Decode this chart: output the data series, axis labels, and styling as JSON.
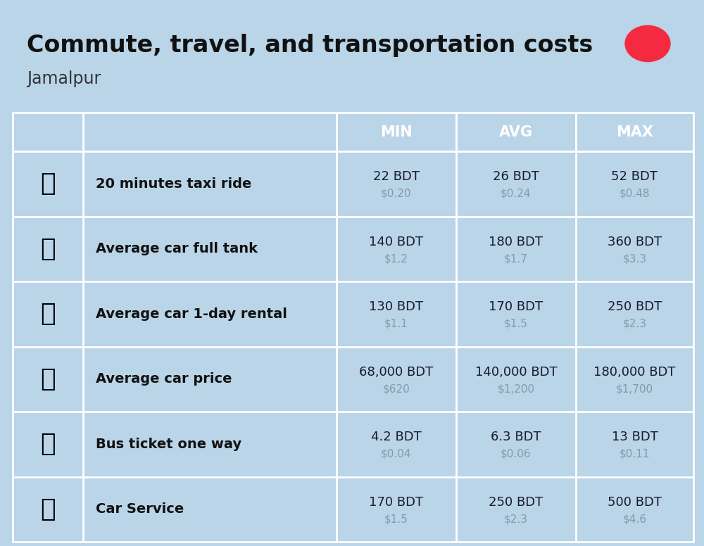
{
  "title": "Commute, travel, and transportation costs",
  "subtitle": "Jamalpur",
  "bg_color": "#bad4e8",
  "header_bg": "#5a94c8",
  "header_text_color": "#ffffff",
  "row_bg_odd": "#c8dff0",
  "row_bg_even": "#bad4e8",
  "icon_col_bg_odd": "#b0cfe4",
  "icon_col_bg_even": "#aacae0",
  "col_headers": [
    "MIN",
    "AVG",
    "MAX"
  ],
  "rows": [
    {
      "label": "20 minutes taxi ride",
      "min_bdt": "22 BDT",
      "min_usd": "$0.20",
      "avg_bdt": "26 BDT",
      "avg_usd": "$0.24",
      "max_bdt": "52 BDT",
      "max_usd": "$0.48"
    },
    {
      "label": "Average car full tank",
      "min_bdt": "140 BDT",
      "min_usd": "$1.2",
      "avg_bdt": "180 BDT",
      "avg_usd": "$1.7",
      "max_bdt": "360 BDT",
      "max_usd": "$3.3"
    },
    {
      "label": "Average car 1-day rental",
      "min_bdt": "130 BDT",
      "min_usd": "$1.1",
      "avg_bdt": "170 BDT",
      "avg_usd": "$1.5",
      "max_bdt": "250 BDT",
      "max_usd": "$2.3"
    },
    {
      "label": "Average car price",
      "min_bdt": "68,000 BDT",
      "min_usd": "$620",
      "avg_bdt": "140,000 BDT",
      "avg_usd": "$1,200",
      "max_bdt": "180,000 BDT",
      "max_usd": "$1,700"
    },
    {
      "label": "Bus ticket one way",
      "min_bdt": "4.2 BDT",
      "min_usd": "$0.04",
      "avg_bdt": "6.3 BDT",
      "avg_usd": "$0.06",
      "max_bdt": "13 BDT",
      "max_usd": "$0.11"
    },
    {
      "label": "Car Service",
      "min_bdt": "170 BDT",
      "min_usd": "$1.5",
      "avg_bdt": "250 BDT",
      "avg_usd": "$2.3",
      "max_bdt": "500 BDT",
      "max_usd": "$4.6"
    }
  ],
  "label_color": "#111111",
  "value_color": "#1a1a2e",
  "usd_color": "#8899aa",
  "flag_green": "#006a4e",
  "flag_red": "#f42a41",
  "divider_color": "#ffffff",
  "col_divider_color": "#ffffff"
}
